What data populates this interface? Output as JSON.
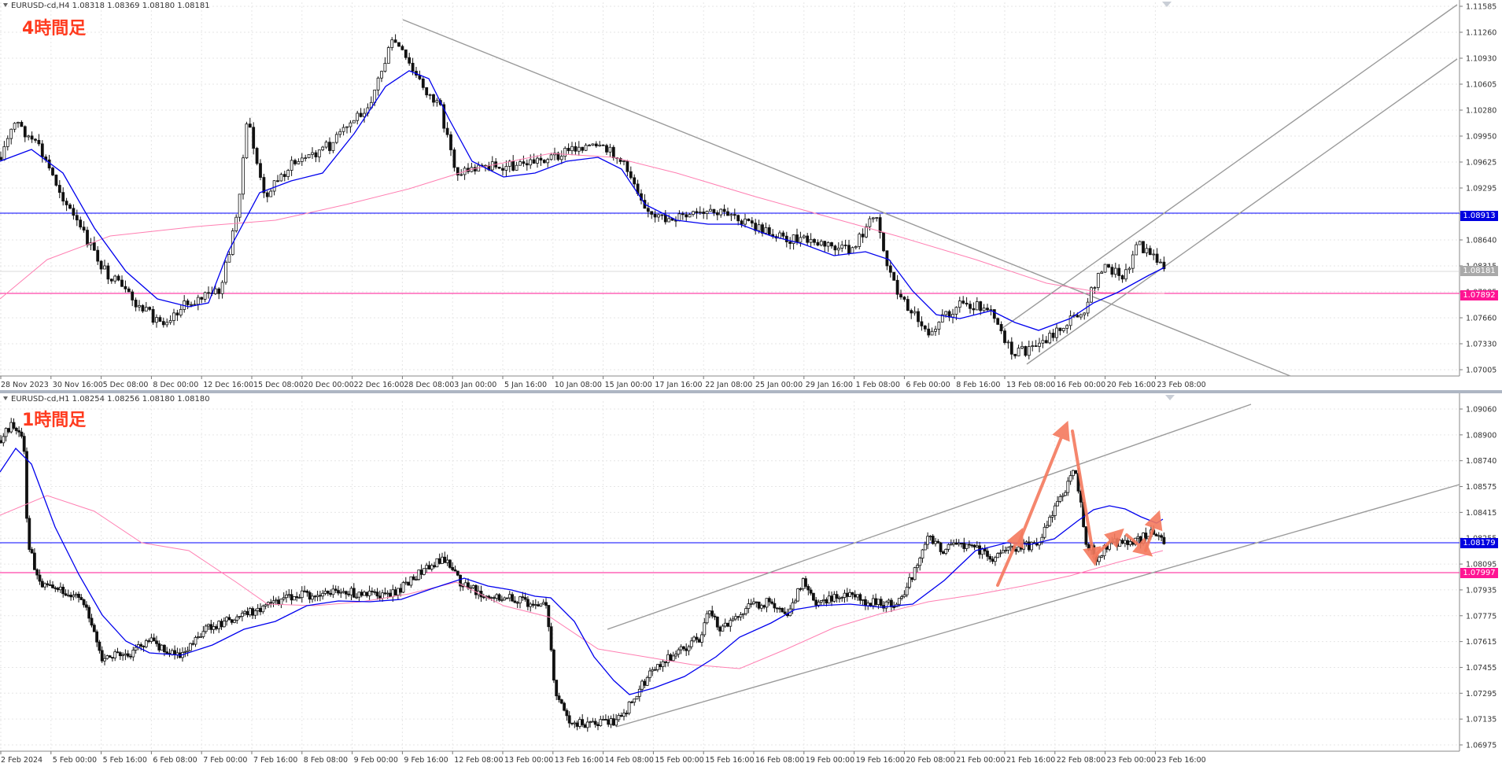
{
  "colors": {
    "blue_ma": "#0000ee",
    "pink_ma": "#ff7fb2",
    "blue_level": "#0000ff",
    "magenta_level": "#ff1493",
    "trend_line": "#9a9a9a",
    "annotation_arrow": "#f47a5e",
    "label_red": "#ff3b1f"
  },
  "top_chart": {
    "header": "EURUSD-cd,H4  1.08318 1.08369 1.08180 1.08181",
    "timeframe_label": "4時間足",
    "y_ticks": [
      "1.11585",
      "1.11260",
      "1.10930",
      "1.10605",
      "1.10280",
      "1.09950",
      "1.09625",
      "1.09295",
      "1.08970",
      "1.08640",
      "1.08315",
      "1.07985",
      "1.07660",
      "1.07330",
      "1.07005"
    ],
    "x_ticks": [
      "28 Nov 2023",
      "30 Nov 16:00",
      "5 Dec 08:00",
      "8 Dec 00:00",
      "12 Dec 16:00",
      "15 Dec 08:00",
      "20 Dec 00:00",
      "22 Dec 16:00",
      "28 Dec 08:00",
      "3 Jan 00:00",
      "5 Jan 16:00",
      "10 Jan 08:00",
      "15 Jan 00:00",
      "17 Jan 16:00",
      "22 Jan 08:00",
      "25 Jan 00:00",
      "29 Jan 16:00",
      "1 Feb 08:00",
      "6 Feb 00:00",
      "8 Feb 16:00",
      "13 Feb 08:00",
      "16 Feb 00:00",
      "20 Feb 16:00",
      "23 Feb 08:00"
    ],
    "price_tags": {
      "blue": "1.08913",
      "current": "1.08181",
      "magenta": "1.07892"
    }
  },
  "bottom_chart": {
    "header": "EURUSD-cd,H1  1.08254 1.08256 1.08180 1.08180",
    "timeframe_label": "1時間足",
    "y_ticks": [
      "1.09060",
      "1.08900",
      "1.08740",
      "1.08575",
      "1.08415",
      "1.08255",
      "1.08095",
      "1.07935",
      "1.07775",
      "1.07615",
      "1.07455",
      "1.07295",
      "1.07135",
      "1.06975"
    ],
    "x_ticks": [
      "2 Feb 2024",
      "5 Feb 00:00",
      "5 Feb 16:00",
      "6 Feb 08:00",
      "7 Feb 00:00",
      "7 Feb 16:00",
      "8 Feb 08:00",
      "9 Feb 00:00",
      "9 Feb 16:00",
      "12 Feb 08:00",
      "13 Feb 00:00",
      "13 Feb 16:00",
      "14 Feb 08:00",
      "15 Feb 00:00",
      "15 Feb 16:00",
      "16 Feb 08:00",
      "19 Feb 00:00",
      "19 Feb 16:00",
      "20 Feb 08:00",
      "21 Feb 00:00",
      "21 Feb 16:00",
      "22 Feb 08:00",
      "23 Feb 00:00",
      "23 Feb 16:00"
    ],
    "price_tags": {
      "blue": "1.08179",
      "magenta": "1.07997"
    }
  }
}
